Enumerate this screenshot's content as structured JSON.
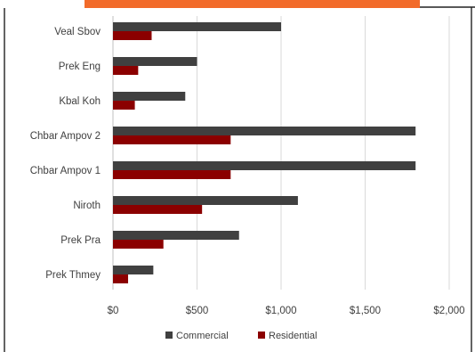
{
  "chart_data": {
    "type": "bar",
    "orientation": "horizontal",
    "categories": [
      "Veal Sbov",
      "Prek Eng",
      "Kbal Koh",
      "Chbar Ampov 2",
      "Chbar Ampov 1",
      "Niroth",
      "Prek Pra",
      "Prek Thmey"
    ],
    "series": [
      {
        "name": "Commercial",
        "values": [
          1000,
          500,
          430,
          1800,
          1800,
          1100,
          750,
          240
        ],
        "color": "#404040"
      },
      {
        "name": "Residential",
        "values": [
          230,
          150,
          130,
          700,
          700,
          530,
          300,
          90
        ],
        "color": "#8b0000"
      }
    ],
    "xlim": [
      0,
      2000
    ],
    "xticks": [
      0,
      500,
      1000,
      1500,
      2000
    ],
    "xtick_labels": [
      "$0",
      "$500",
      "$1,000",
      "$1,500",
      "$2,000"
    ],
    "grid": "vertical",
    "legend_position": "bottom",
    "title": "",
    "xlabel": "",
    "ylabel": ""
  },
  "colors": {
    "header_bar": "#f26b2a",
    "frame": "#222222",
    "grid": "#d9d9d9",
    "text": "#404040"
  }
}
